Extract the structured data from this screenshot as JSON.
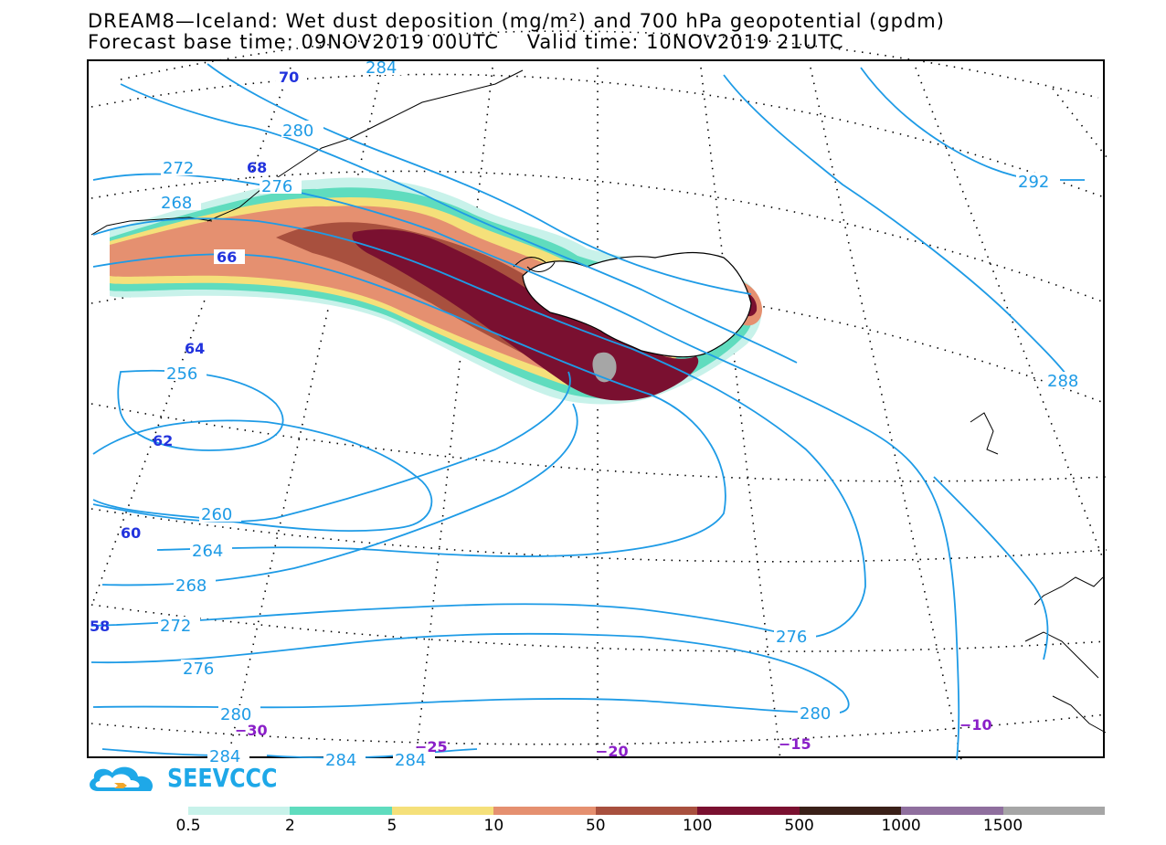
{
  "header": {
    "title_line1": "DREAM8—Iceland: Wet dust deposition (mg/m²) and 700 hPa geopotential (gpdm)",
    "title_line2": "Forecast base time: 09NOV2019 00UTC    Valid time: 10NOV2019 21UTC"
  },
  "map": {
    "contour_labels": [
      "284",
      "280",
      "276",
      "272",
      "268",
      "256",
      "260",
      "264",
      "268",
      "272",
      "276",
      "280",
      "284",
      "284",
      "284",
      "292",
      "288",
      "276",
      "280"
    ],
    "latitude_labels": [
      "70",
      "68",
      "66",
      "64",
      "62",
      "60",
      "58"
    ],
    "longitude_labels": [
      "−30",
      "−25",
      "−20",
      "−15",
      "−10"
    ],
    "contour_color": "#1e9be6",
    "lat_label_color": "#2233dd",
    "lon_label_color": "#8a1fc8"
  },
  "logo": {
    "text": "SEEVCCC"
  },
  "legend": {
    "colors": [
      "#c8f2ea",
      "#5fdcbe",
      "#f5e07a",
      "#e59070",
      "#a8503e",
      "#7a1030",
      "#3a2018",
      "#8f6f9e",
      "#a6a6a6"
    ],
    "tick_labels": [
      "0.5",
      "2",
      "5",
      "10",
      "50",
      "100",
      "500",
      "1000",
      "1500"
    ]
  }
}
